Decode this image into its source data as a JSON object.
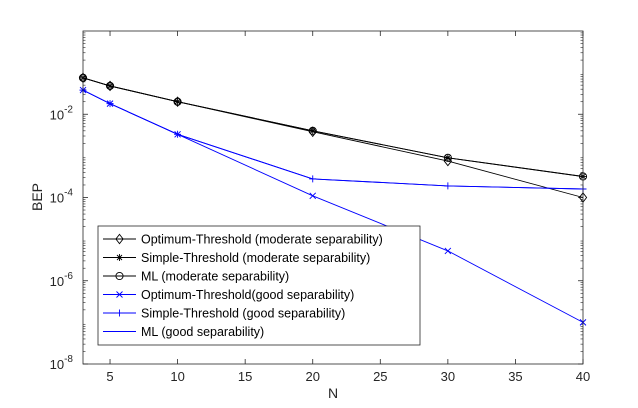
{
  "chart_data": {
    "type": "line",
    "title": "",
    "xlabel": "N",
    "ylabel": "BEP",
    "yscale": "log",
    "xlim": [
      3,
      40
    ],
    "ylim": [
      1e-08,
      1
    ],
    "x_ticks": [
      5,
      10,
      15,
      20,
      25,
      30,
      35,
      40
    ],
    "y_ticks": [
      {
        "value": 1e-08,
        "base": "10",
        "exp": "-8"
      },
      {
        "value": 1e-06,
        "base": "10",
        "exp": "-6"
      },
      {
        "value": 0.0001,
        "base": "10",
        "exp": "-4"
      },
      {
        "value": 0.01,
        "base": "10",
        "exp": "-2"
      }
    ],
    "legend_position": "bottom-left",
    "x": [
      3,
      5,
      10,
      20,
      30,
      40
    ],
    "series": [
      {
        "name": "Optimum-Threshold (moderate separability)",
        "color": "#000000",
        "marker": "diamond",
        "markers": true,
        "values": [
          0.075,
          0.048,
          0.02,
          0.0038,
          0.00075,
          0.0001
        ]
      },
      {
        "name": "Simple-Threshold (moderate separability)",
        "color": "#000000",
        "marker": "asterisk",
        "markers": true,
        "values": [
          0.075,
          0.048,
          0.02,
          0.004,
          0.0009,
          0.00032
        ]
      },
      {
        "name": "ML (moderate separability)",
        "color": "#000000",
        "marker": "circle",
        "markers": true,
        "values": [
          0.075,
          0.048,
          0.02,
          0.004,
          0.0009,
          0.00032
        ]
      },
      {
        "name": "Optimum-Threshold(good separability)",
        "color": "#0000ff",
        "marker": "x",
        "markers": true,
        "values": [
          0.038,
          0.018,
          0.0033,
          0.00011,
          5.2e-06,
          1e-07
        ]
      },
      {
        "name": "Simple-Threshold (good separability)",
        "color": "#0000ff",
        "marker": "plus",
        "markers": true,
        "values": [
          0.038,
          0.018,
          0.0033,
          0.00028,
          0.00019,
          0.00016
        ]
      },
      {
        "name": "ML (good separability)",
        "color": "#0000ff",
        "marker": "none",
        "markers": false,
        "values": [
          0.038,
          0.018,
          0.0033,
          0.00028,
          0.00019,
          0.00016
        ]
      }
    ]
  }
}
